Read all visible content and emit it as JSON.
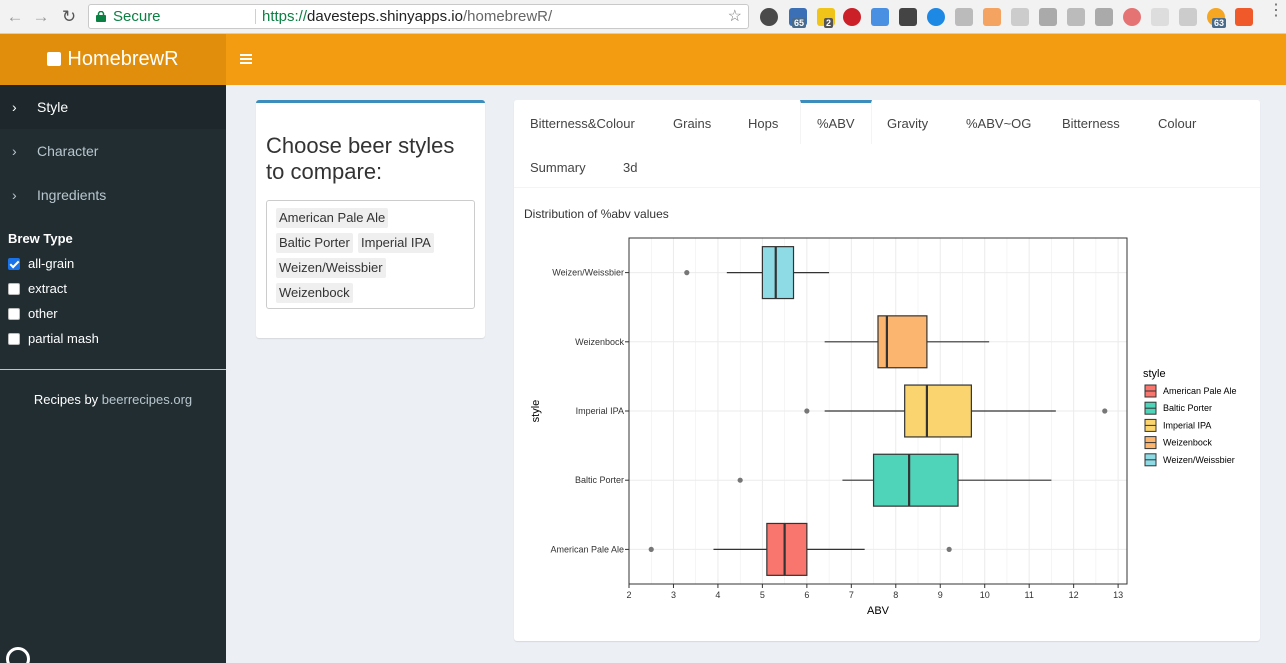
{
  "browser": {
    "secure_label": "Secure",
    "url_scheme": "https://",
    "url_host": "davesteps.shinyapps.io",
    "url_path": "/homebrewR/",
    "badge_65": "65",
    "badge_2": "2",
    "badge_63": "63"
  },
  "app": {
    "title": "HomebrewR"
  },
  "sidebar": {
    "menu": [
      {
        "label": "Style",
        "active": true
      },
      {
        "label": "Character",
        "active": false
      },
      {
        "label": "Ingredients",
        "active": false
      }
    ],
    "brew_type_title": "Brew Type",
    "brew_types": [
      {
        "label": "all-grain",
        "checked": true
      },
      {
        "label": "extract",
        "checked": false
      },
      {
        "label": "other",
        "checked": false
      },
      {
        "label": "partial mash",
        "checked": false
      }
    ],
    "credit_prefix": "Recipes by",
    "credit_link": "beerrecipes.org"
  },
  "chooser": {
    "title": "Choose beer styles to compare:",
    "selected": [
      "American Pale Ale",
      "Baltic Porter",
      "Imperial IPA",
      "Weizen/Weissbier",
      "Weizenbock"
    ]
  },
  "tabs": [
    {
      "label": "Bitterness&Colour",
      "active": false
    },
    {
      "label": "Grains",
      "active": false
    },
    {
      "label": "Hops",
      "active": false
    },
    {
      "label": "%ABV",
      "active": true
    },
    {
      "label": "Gravity",
      "active": false
    },
    {
      "label": "%ABV~OG",
      "active": false
    },
    {
      "label": "Bitterness",
      "active": false
    },
    {
      "label": "Colour",
      "active": false
    },
    {
      "label": "Summary",
      "active": false
    },
    {
      "label": "3d",
      "active": false
    }
  ],
  "plot_heading": "Distribution of %abv values",
  "chart_data": {
    "type": "boxplot",
    "orientation": "horizontal",
    "xlabel": "ABV",
    "ylabel": "style",
    "xlim": [
      2,
      13.2
    ],
    "xticks": [
      2,
      3,
      4,
      5,
      6,
      7,
      8,
      9,
      10,
      11,
      12,
      13
    ],
    "grid": true,
    "legend_title": "style",
    "legend_position": "right",
    "series": [
      {
        "name": "American Pale Ale",
        "color": "#f8766d",
        "whisker_low": 3.9,
        "q1": 5.1,
        "median": 5.5,
        "q3": 6.0,
        "whisker_high": 7.3,
        "outliers": [
          2.5,
          9.2
        ]
      },
      {
        "name": "Baltic Porter",
        "color": "#4fd3b9",
        "whisker_low": 6.8,
        "q1": 7.5,
        "median": 8.3,
        "q3": 9.4,
        "whisker_high": 11.5,
        "outliers": [
          4.5
        ]
      },
      {
        "name": "Imperial IPA",
        "color": "#fad46f",
        "whisker_low": 6.4,
        "q1": 8.2,
        "median": 8.7,
        "q3": 9.7,
        "whisker_high": 11.6,
        "outliers": [
          6.0,
          12.7
        ]
      },
      {
        "name": "Weizenbock",
        "color": "#fcb56e",
        "whisker_low": 6.4,
        "q1": 7.6,
        "median": 7.8,
        "q3": 8.7,
        "whisker_high": 10.1,
        "outliers": []
      },
      {
        "name": "Weizen/Weissbier",
        "color": "#8fdbe5",
        "whisker_low": 4.2,
        "q1": 5.0,
        "median": 5.3,
        "q3": 5.7,
        "whisker_high": 6.5,
        "outliers": [
          3.3
        ]
      }
    ]
  }
}
